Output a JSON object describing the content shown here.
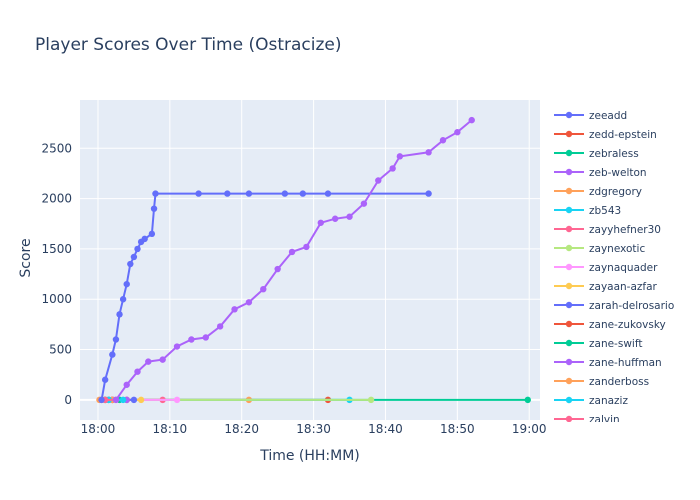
{
  "chart_data": {
    "type": "line",
    "title": "Player Scores Over Time (Ostracize)",
    "xlabel": "Time (HH:MM)",
    "ylabel": "Score",
    "x_ticks": [
      "18:00",
      "18:10",
      "18:20",
      "18:30",
      "18:40",
      "18:50",
      "19:00"
    ],
    "y_ticks": [
      0,
      500,
      1000,
      1500,
      2000,
      2500
    ],
    "xlim": [
      "17:57.5",
      "19:01.5"
    ],
    "ylim": [
      -200,
      2980
    ],
    "grid": true,
    "legend_position": "right",
    "series": [
      {
        "name": "zeeadd",
        "color": "#636efa",
        "points": [
          [
            "18:00.5",
            0
          ],
          [
            "18:01.0",
            200
          ],
          [
            "18:02.0",
            450
          ],
          [
            "18:02.5",
            600
          ],
          [
            "18:03.0",
            850
          ],
          [
            "18:03.5",
            1000
          ],
          [
            "18:04.0",
            1150
          ],
          [
            "18:04.5",
            1350
          ],
          [
            "18:05.0",
            1420
          ],
          [
            "18:05.5",
            1500
          ],
          [
            "18:06.0",
            1570
          ],
          [
            "18:06.5",
            1600
          ],
          [
            "18:07.5",
            1650
          ],
          [
            "18:07.8",
            1900
          ],
          [
            "18:08.0",
            2050
          ],
          [
            "18:14.0",
            2050
          ],
          [
            "18:18.0",
            2050
          ],
          [
            "18:21.0",
            2050
          ],
          [
            "18:26.0",
            2050
          ],
          [
            "18:28.5",
            2050
          ],
          [
            "18:32.0",
            2050
          ],
          [
            "18:46.0",
            2050
          ]
        ]
      },
      {
        "name": "zedd-epstein",
        "color": "#ef553b",
        "points": [
          [
            "18:02.0",
            0
          ],
          [
            "18:32.0",
            0
          ]
        ]
      },
      {
        "name": "zebraless",
        "color": "#00cc96",
        "points": [
          [
            "18:01.0",
            0
          ],
          [
            "18:59.8",
            0
          ]
        ]
      },
      {
        "name": "zeb-welton",
        "color": "#ab63fa",
        "points": [
          [
            "18:02.5",
            0
          ],
          [
            "18:04.0",
            150
          ],
          [
            "18:05.5",
            280
          ],
          [
            "18:07.0",
            380
          ],
          [
            "18:09.0",
            400
          ],
          [
            "18:11.0",
            530
          ],
          [
            "18:13.0",
            600
          ],
          [
            "18:15.0",
            620
          ],
          [
            "18:17.0",
            730
          ],
          [
            "18:19.0",
            900
          ],
          [
            "18:21.0",
            970
          ],
          [
            "18:23.0",
            1100
          ],
          [
            "18:25.0",
            1300
          ],
          [
            "18:27.0",
            1470
          ],
          [
            "18:29.0",
            1520
          ],
          [
            "18:31.0",
            1760
          ],
          [
            "18:33.0",
            1800
          ],
          [
            "18:35.0",
            1820
          ],
          [
            "18:37.0",
            1950
          ],
          [
            "18:39.0",
            2180
          ],
          [
            "18:41.0",
            2300
          ],
          [
            "18:42.0",
            2420
          ],
          [
            "18:46.0",
            2460
          ],
          [
            "18:48.0",
            2580
          ],
          [
            "18:50.0",
            2660
          ],
          [
            "18:52.0",
            2780
          ]
        ]
      },
      {
        "name": "zdgregory",
        "color": "#ffa15a",
        "points": [
          [
            "18:00.2",
            0
          ],
          [
            "18:21.0",
            0
          ]
        ]
      },
      {
        "name": "zb543",
        "color": "#19d3f3",
        "points": [
          [
            "18:01.5",
            0
          ],
          [
            "18:35.0",
            0
          ]
        ]
      },
      {
        "name": "zayyhefner30",
        "color": "#ff6692",
        "points": [
          [
            "18:01.0",
            0
          ],
          [
            "18:09.0",
            0
          ]
        ]
      },
      {
        "name": "zaynexotic",
        "color": "#b6e880",
        "points": [
          [
            "18:01.5",
            0
          ],
          [
            "18:38.0",
            0
          ]
        ]
      },
      {
        "name": "zaynaquader",
        "color": "#ff97ff",
        "points": [
          [
            "18:03.0",
            0
          ],
          [
            "18:11.0",
            0
          ]
        ]
      },
      {
        "name": "zayaan-azfar",
        "color": "#fecb52",
        "points": [
          [
            "18:01.0",
            0
          ],
          [
            "18:06.0",
            0
          ]
        ]
      },
      {
        "name": "zarah-delrosario",
        "color": "#636efa",
        "points": [
          [
            "18:01.5",
            0
          ],
          [
            "18:05.0",
            0
          ]
        ]
      },
      {
        "name": "zane-zukovsky",
        "color": "#ef553b",
        "points": [
          [
            "18:02.0",
            0
          ],
          [
            "18:04.0",
            0
          ]
        ]
      },
      {
        "name": "zane-swift",
        "color": "#00cc96",
        "points": [
          [
            "18:01.0",
            0
          ],
          [
            "18:03.0",
            0
          ]
        ]
      },
      {
        "name": "zane-huffman",
        "color": "#ab63fa",
        "points": [
          [
            "18:02.0",
            0
          ],
          [
            "18:04.0",
            0
          ]
        ]
      },
      {
        "name": "zanderboss",
        "color": "#ffa15a",
        "points": [
          [
            "18:00.5",
            0
          ],
          [
            "18:02.0",
            0
          ]
        ]
      },
      {
        "name": "zanaziz",
        "color": "#19d3f3",
        "points": [
          [
            "18:01.5",
            0
          ],
          [
            "18:03.5",
            0
          ]
        ]
      },
      {
        "name": "zalvin",
        "color": "#ff6692",
        "points": [
          [
            "18:01.0",
            0
          ],
          [
            "18:02.5",
            0
          ]
        ]
      }
    ]
  }
}
